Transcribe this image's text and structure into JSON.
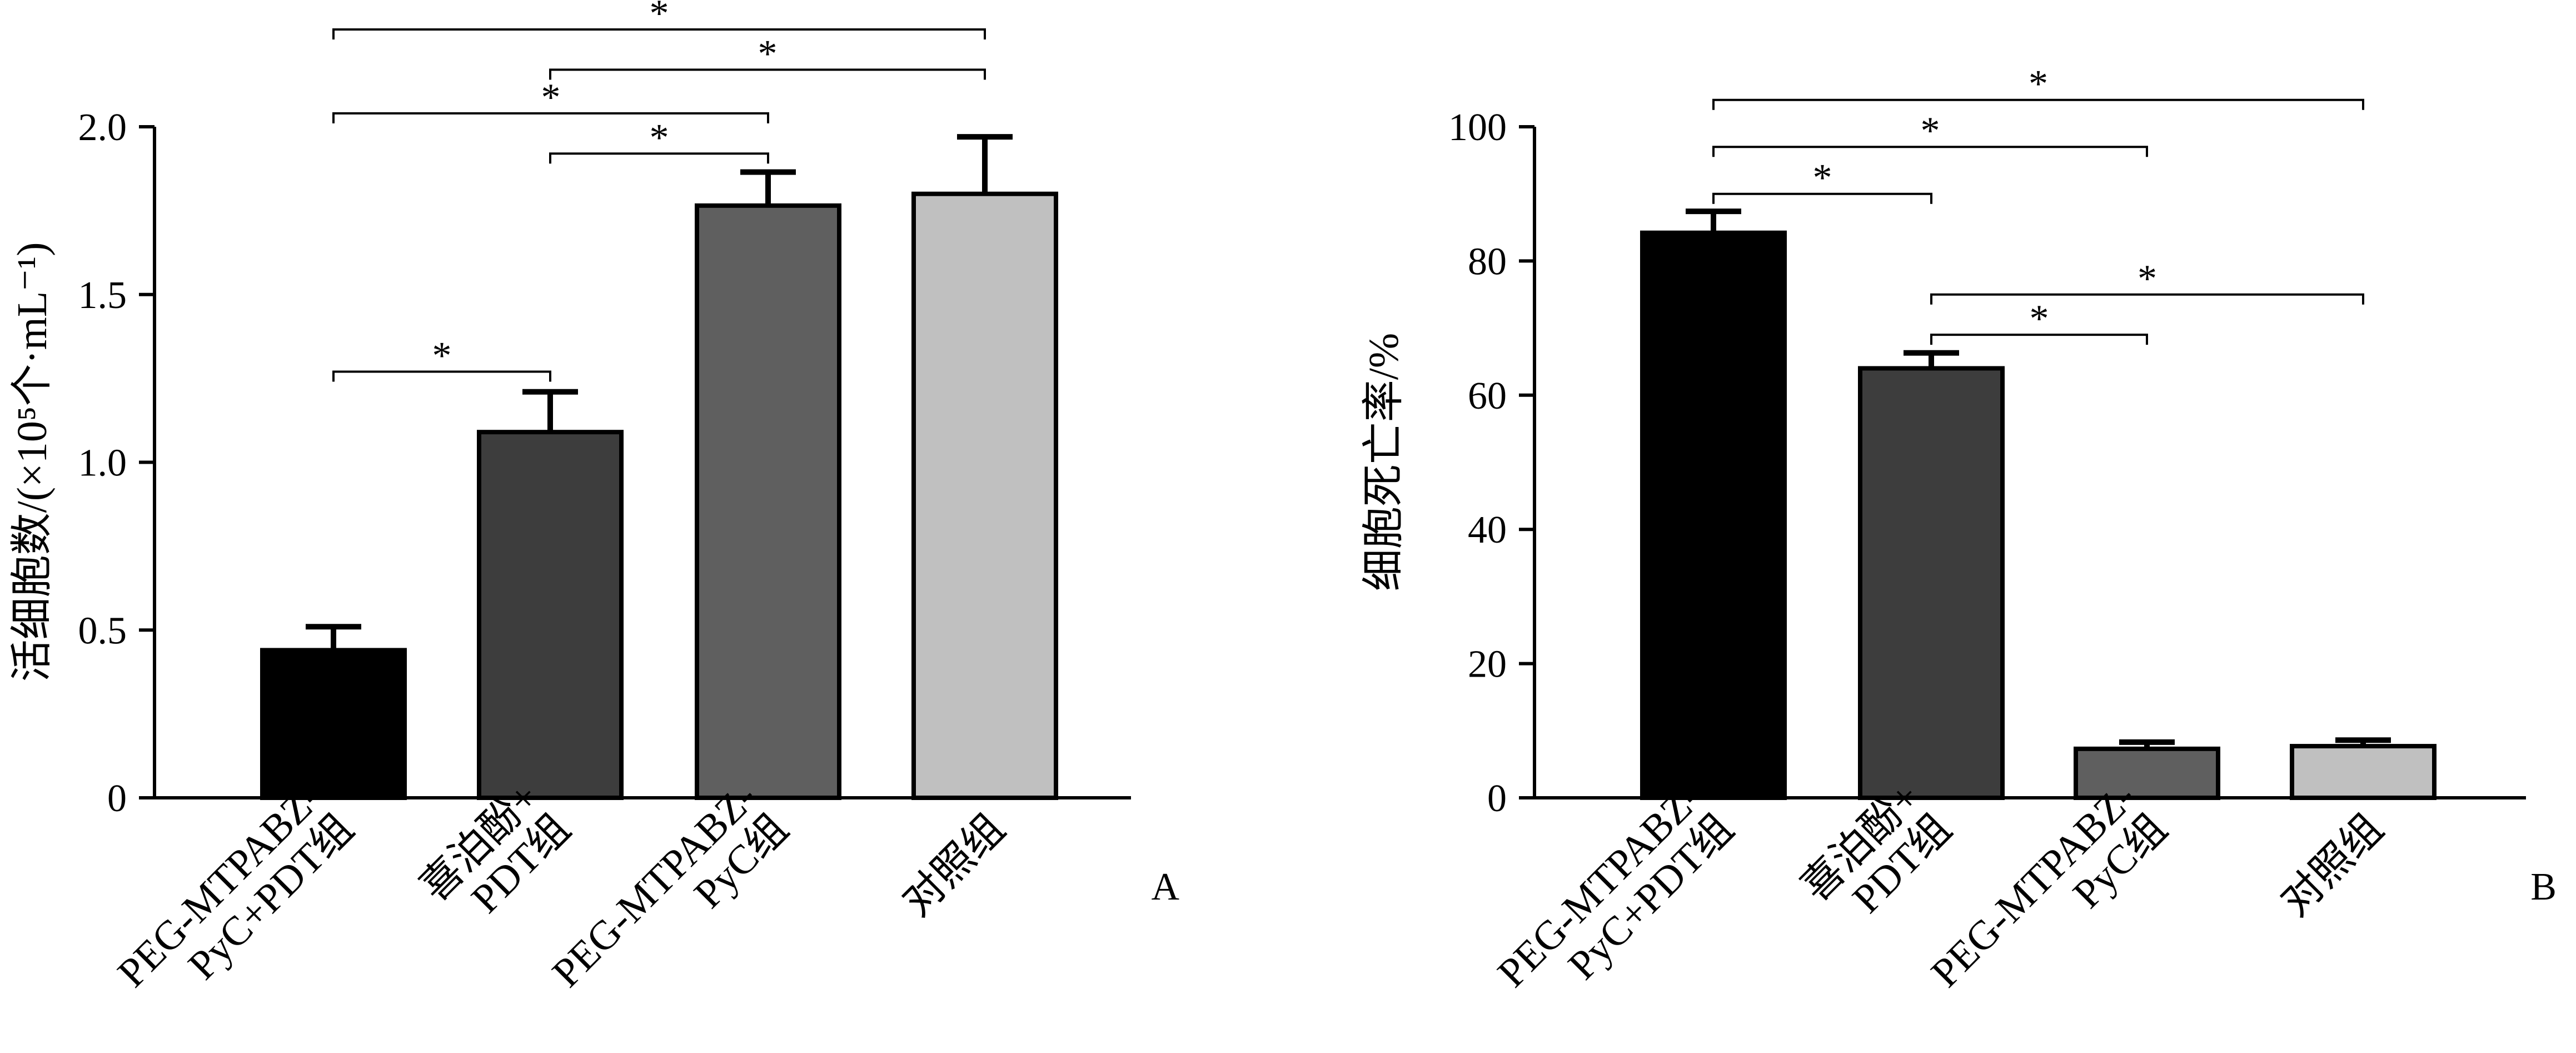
{
  "chart_data": [
    {
      "type": "bar",
      "panel": "A",
      "ylabel": "活细胞数/(×10⁵个·mL⁻¹)",
      "ylim": [
        0,
        2.0
      ],
      "yticks": [
        {
          "value": 0,
          "label": "0"
        },
        {
          "value": 0.5,
          "label": "0.5"
        },
        {
          "value": 1.0,
          "label": "1.0"
        },
        {
          "value": 1.5,
          "label": "1.5"
        },
        {
          "value": 2.0,
          "label": "2.0"
        }
      ],
      "bars": [
        {
          "label": [
            "PEG-MTPABZ-",
            "PyC+PDT组"
          ],
          "value": 0.44,
          "error": 0.07,
          "color": "#000000"
        },
        {
          "label": [
            "喜泊酚+",
            "PDT组"
          ],
          "value": 1.09,
          "error": 0.12,
          "color": "#3d3d3d"
        },
        {
          "label": [
            "PEG-MTPABZ-",
            "PyC组"
          ],
          "value": 1.765,
          "error": 0.1,
          "color": "#5f5f5f"
        },
        {
          "label": [
            "对照组"
          ],
          "value": 1.8,
          "error": 0.17,
          "color": "#c0c0c0"
        }
      ],
      "significance": [
        {
          "from": 0,
          "to": 1,
          "at": 1.27,
          "label": "*"
        },
        {
          "from": 1,
          "to": 2,
          "at": 1.92,
          "label": "*"
        },
        {
          "from": 0,
          "to": 2,
          "at": 2.04,
          "label": "*"
        },
        {
          "from": 1,
          "to": 3,
          "at": 2.17,
          "label": "*"
        },
        {
          "from": 0,
          "to": 3,
          "at": 2.29,
          "label": "*"
        }
      ]
    },
    {
      "type": "bar",
      "panel": "B",
      "ylabel": "细胞死亡率/%",
      "ylim": [
        0,
        100
      ],
      "yticks": [
        {
          "value": 0,
          "label": "0"
        },
        {
          "value": 20,
          "label": "20"
        },
        {
          "value": 40,
          "label": "40"
        },
        {
          "value": 60,
          "label": "60"
        },
        {
          "value": 80,
          "label": "80"
        },
        {
          "value": 100,
          "label": "100"
        }
      ],
      "bars": [
        {
          "label": [
            "PEG-MTPABZ-",
            "PyC+PDT组"
          ],
          "value": 84.2,
          "error": 3.2,
          "color": "#000000"
        },
        {
          "label": [
            "喜泊酚+",
            "PDT组"
          ],
          "value": 64,
          "error": 2.3,
          "color": "#3d3d3d"
        },
        {
          "label": [
            "PEG-MTPABZ-",
            "PyC组"
          ],
          "value": 7.3,
          "error": 1.0,
          "color": "#5f5f5f"
        },
        {
          "label": [
            "对照组"
          ],
          "value": 7.7,
          "error": 0.9,
          "color": "#c0c0c0"
        }
      ],
      "significance": [
        {
          "from": 1,
          "to": 2,
          "at": 69,
          "label": "*"
        },
        {
          "from": 1,
          "to": 3,
          "at": 75,
          "label": "*"
        },
        {
          "from": 0,
          "to": 1,
          "at": 90,
          "label": "*"
        },
        {
          "from": 0,
          "to": 2,
          "at": 97,
          "label": "*"
        },
        {
          "from": 0,
          "to": 3,
          "at": 104,
          "label": "*"
        }
      ]
    }
  ]
}
